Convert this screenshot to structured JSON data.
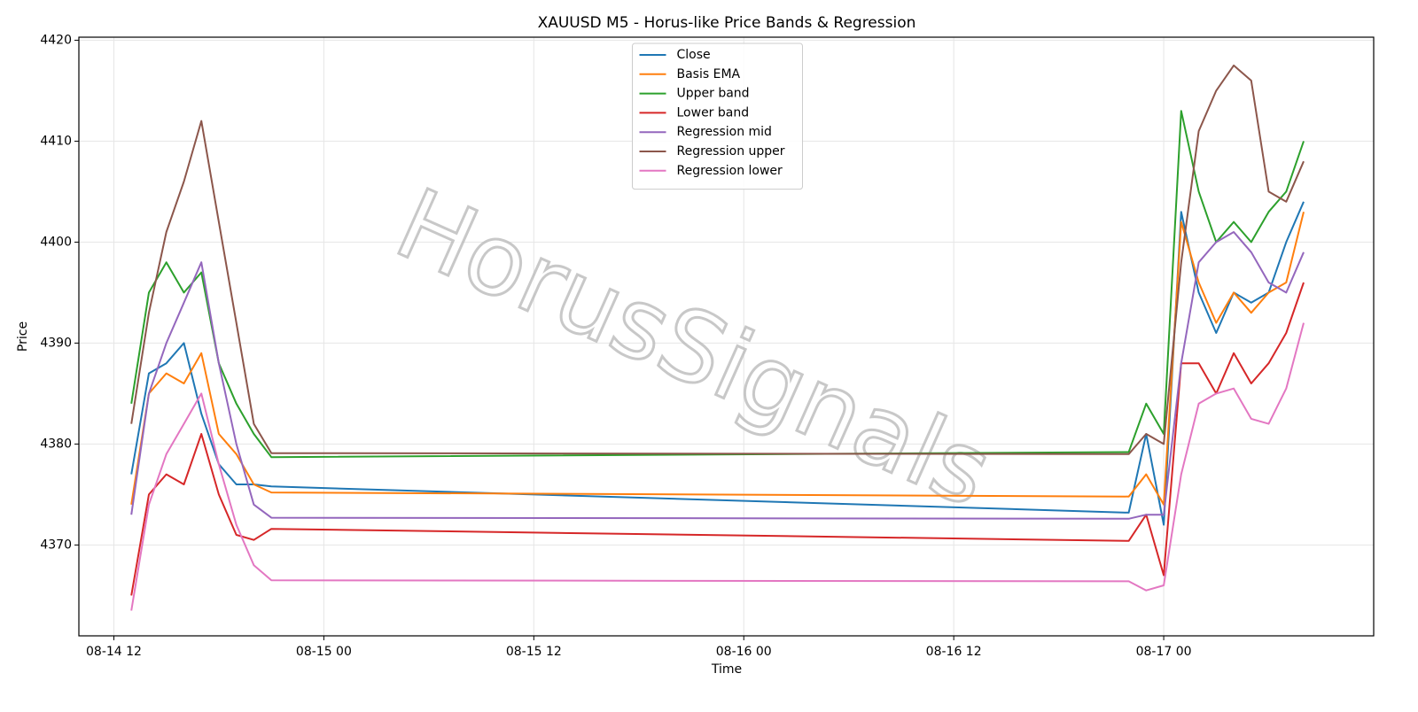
{
  "chart_data": {
    "type": "line",
    "title": "XAUUSD M5 - Horus-like Price Bands & Regression",
    "xlabel": "Time",
    "ylabel": "Price",
    "watermark": "HorusSignals",
    "x": [
      "08-14 13",
      "08-14 14",
      "08-14 15",
      "08-14 16",
      "08-14 17",
      "08-14 18",
      "08-14 19",
      "08-14 20",
      "08-14 21",
      "08-16 22",
      "08-16 23",
      "08-17 00",
      "08-17 01",
      "08-17 02",
      "08-17 03",
      "08-17 04",
      "08-17 05",
      "08-17 06",
      "08-17 07",
      "08-17 08"
    ],
    "series": [
      {
        "name": "Close",
        "color": "#1f77b4",
        "values": [
          4377,
          4387,
          4388,
          4390,
          4383,
          4378,
          4376,
          4376,
          4375.8,
          4373.2,
          4381,
          4372,
          4403,
          4395,
          4391,
          4395,
          4394,
          4395,
          4400,
          4404
        ]
      },
      {
        "name": "Basis EMA",
        "color": "#ff7f0e",
        "values": [
          4374,
          4385,
          4387,
          4386,
          4389,
          4381,
          4379,
          4376,
          4375.2,
          4374.8,
          4377,
          4374,
          4402,
          4396,
          4392,
          4395,
          4393,
          4395,
          4396,
          4403
        ]
      },
      {
        "name": "Upper band",
        "color": "#2ca02c",
        "values": [
          4384,
          4395,
          4398,
          4395,
          4397,
          4388,
          4384,
          4381,
          4378.7,
          4379.2,
          4384,
          4381,
          4413,
          4405,
          4400,
          4402,
          4400,
          4403,
          4405,
          4410
        ]
      },
      {
        "name": "Lower band",
        "color": "#d62728",
        "values": [
          4365,
          4375,
          4377,
          4376,
          4381,
          4375,
          4371,
          4370.5,
          4371.6,
          4370.4,
          4373,
          4367,
          4388,
          4388,
          4385,
          4389,
          4386,
          4388,
          4391,
          4396
        ]
      },
      {
        "name": "Regression mid",
        "color": "#9467bd",
        "values": [
          4373,
          4385,
          4390,
          4394,
          4398,
          4388,
          4380,
          4374,
          4372.7,
          4372.6,
          4373,
          4373,
          4388,
          4398,
          4400,
          4401,
          4399,
          4396,
          4395,
          4399
        ]
      },
      {
        "name": "Regression upper",
        "color": "#8c564b",
        "values": [
          4382,
          4393,
          4401,
          4406,
          4412,
          4402,
          4392,
          4382,
          4379.1,
          4379,
          4381,
          4380,
          4398,
          4411,
          4415,
          4417.5,
          4416,
          4405,
          4404,
          4408
        ]
      },
      {
        "name": "Regression lower",
        "color": "#e377c2",
        "values": [
          4363.5,
          4374,
          4379,
          4382,
          4385,
          4378,
          4372,
          4368,
          4366.5,
          4366.4,
          4365.5,
          4366,
          4377,
          4384,
          4385,
          4385.5,
          4382.5,
          4382,
          4385.5,
          4392
        ]
      }
    ],
    "xlim": [
      "08-14 10",
      "08-17 12"
    ],
    "xticks": [
      "08-14 12",
      "08-15 00",
      "08-15 12",
      "08-16 00",
      "08-16 12",
      "08-17 00"
    ],
    "ylim": [
      4361,
      4420.3
    ],
    "yticks": [
      4370,
      4380,
      4390,
      4400,
      4410,
      4420
    ],
    "grid": true,
    "legend": "upper center"
  }
}
